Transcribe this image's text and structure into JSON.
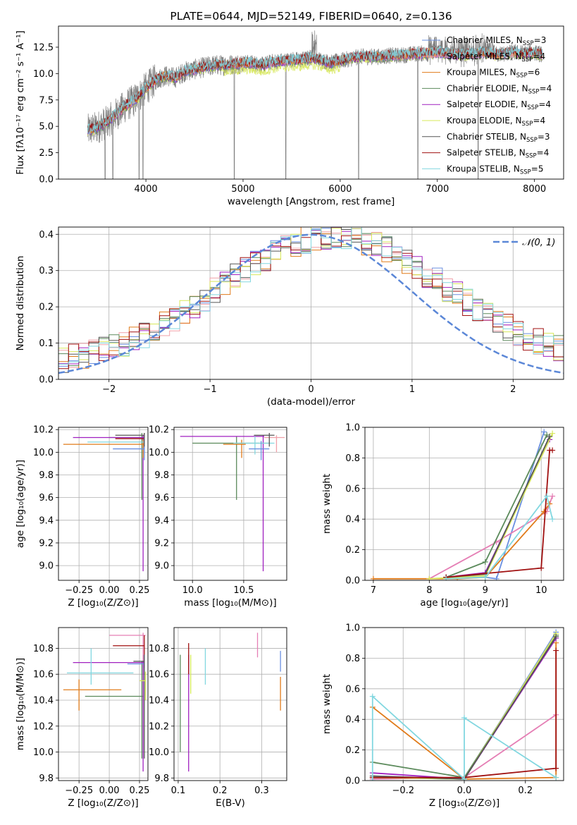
{
  "colors": {
    "chabrier_miles": "#6a8fe0",
    "salpeter_miles": "#f0a1a9",
    "kroupa_miles": "#e07b1a",
    "chabrier_elodie": "#5b8a5b",
    "salpeter_elodie": "#a020c0",
    "kroupa_elodie": "#d7e85a",
    "chabrier_stelib": "#555555",
    "salpeter_stelib": "#a01010",
    "kroupa_stelib": "#82d7e0",
    "pink": "#e57fb5",
    "data": "#808080",
    "gaussian": "#5b87d7"
  },
  "chart_data": [
    {
      "id": "spectrum",
      "type": "line",
      "title": "PLATE=0644, MJD=52149, FIBERID=0640, z=0.136",
      "xlabel": "wavelength [Angstrom, rest frame]",
      "ylabel": "Flux [fλ10⁻¹⁷ erg cm⁻² s⁻¹ A⁻¹]",
      "xlim": [
        3100,
        8300
      ],
      "ylim": [
        0,
        14.5
      ],
      "xticks": [
        "4000",
        "5000",
        "6000",
        "7000",
        "8000"
      ],
      "yticks": [
        "0.0",
        "2.5",
        "5.0",
        "7.5",
        "10.0",
        "12.5"
      ],
      "grid": false,
      "legend_position": "top-right",
      "legend": [
        {
          "label": "Chabrier MILES, N",
          "sub": "SSP",
          "tail": "=3",
          "color": "chabrier_miles"
        },
        {
          "label": "Salpeter MILES, N",
          "sub": "SSP",
          "tail": "=4",
          "color": "salpeter_miles"
        },
        {
          "label": "Kroupa MILES, N",
          "sub": "SSP",
          "tail": "=6",
          "color": "kroupa_miles"
        },
        {
          "label": "Chabrier ELODIE, N",
          "sub": "SSP",
          "tail": "=4",
          "color": "chabrier_elodie"
        },
        {
          "label": "Salpeter ELODIE, N",
          "sub": "SSP",
          "tail": "=4",
          "color": "salpeter_elodie"
        },
        {
          "label": "Kroupa ELODIE, N",
          "sub": "SSP",
          "tail": "=4",
          "color": "kroupa_elodie"
        },
        {
          "label": "Chabrier STELIB, N",
          "sub": "SSP",
          "tail": "=3",
          "color": "chabrier_stelib"
        },
        {
          "label": "Salpeter STELIB, N",
          "sub": "SSP",
          "tail": "=4",
          "color": "salpeter_stelib"
        },
        {
          "label": "Kroupa STELIB, N",
          "sub": "SSP",
          "tail": "=5",
          "color": "kroupa_stelib"
        }
      ],
      "continuum": [
        [
          3400,
          4.6
        ],
        [
          3500,
          4.9
        ],
        [
          3600,
          5.4
        ],
        [
          3700,
          6.2
        ],
        [
          3800,
          7.0
        ],
        [
          3900,
          7.6
        ],
        [
          4000,
          8.6
        ],
        [
          4100,
          9.4
        ],
        [
          4200,
          9.8
        ],
        [
          4300,
          9.6
        ],
        [
          4400,
          10.2
        ],
        [
          4500,
          10.4
        ],
        [
          4600,
          10.6
        ],
        [
          4700,
          10.8
        ],
        [
          4800,
          10.8
        ],
        [
          4900,
          10.9
        ],
        [
          5000,
          11.0
        ],
        [
          5100,
          11.0
        ],
        [
          5200,
          10.8
        ],
        [
          5300,
          11.1
        ],
        [
          5400,
          11.2
        ],
        [
          5500,
          11.3
        ],
        [
          5600,
          11.3
        ],
        [
          5700,
          11.5
        ],
        [
          5800,
          11.3
        ],
        [
          5900,
          11.0
        ],
        [
          6000,
          11.2
        ],
        [
          6100,
          11.4
        ],
        [
          6200,
          11.6
        ],
        [
          6300,
          11.6
        ],
        [
          6400,
          11.6
        ],
        [
          6500,
          11.7
        ],
        [
          6600,
          11.7
        ],
        [
          6700,
          11.8
        ],
        [
          6800,
          11.9
        ],
        [
          6900,
          11.9
        ],
        [
          7000,
          12.0
        ],
        [
          7100,
          11.9
        ],
        [
          7200,
          11.8
        ],
        [
          7300,
          11.8
        ],
        [
          7400,
          11.9
        ],
        [
          7500,
          12.0
        ],
        [
          7600,
          11.8
        ],
        [
          7700,
          11.9
        ],
        [
          7800,
          12.0
        ],
        [
          7900,
          11.9
        ],
        [
          8000,
          12.0
        ],
        [
          8080,
          11.8
        ]
      ],
      "dips": [
        [
          3580,
          0
        ],
        [
          3660,
          0
        ],
        [
          3930,
          0
        ],
        [
          3970,
          0
        ],
        [
          4910,
          0
        ],
        [
          5440,
          0
        ],
        [
          6190,
          0
        ],
        [
          6800,
          0
        ],
        [
          7420,
          0
        ]
      ]
    },
    {
      "id": "residuals",
      "type": "step",
      "xlabel": "(data-model)/error",
      "ylabel": "Normed distribution",
      "xlim": [
        -2.5,
        2.5
      ],
      "ylim": [
        0,
        0.42
      ],
      "xticks": [
        "−2",
        "−1",
        "0",
        "1",
        "2"
      ],
      "yticks": [
        "0.0",
        "0.1",
        "0.2",
        "0.3",
        "0.4"
      ],
      "grid": true,
      "legend_position": "top-right",
      "legend_label": "𝒩(0, 1)",
      "gaussian": {
        "mean": 0,
        "sigma": 1
      },
      "bin_width": 0.1,
      "series_colors": [
        "chabrier_miles",
        "salpeter_miles",
        "kroupa_miles",
        "chabrier_elodie",
        "salpeter_elodie",
        "kroupa_elodie",
        "chabrier_stelib",
        "salpeter_stelib",
        "kroupa_stelib"
      ]
    },
    {
      "id": "age_vs_Z",
      "type": "errorbar",
      "xlabel": "Z [log₁₀(Z/Z⊙)]",
      "ylabel": "age  [log₁₀(age/yr)]",
      "xlim": [
        -0.42,
        0.32
      ],
      "ylim": [
        8.87,
        10.22
      ],
      "xticks": [
        "−0.25",
        "0.00",
        "0.25"
      ],
      "yticks": [
        "9.0",
        "9.2",
        "9.4",
        "9.6",
        "9.8",
        "10.0",
        "10.2"
      ],
      "grid": true,
      "points": [
        {
          "x": 0.27,
          "y": 10.13,
          "xl": 0.0,
          "xh": 0.28,
          "yl": 9.58,
          "yh": 10.17,
          "color": "chabrier_elodie"
        },
        {
          "x": 0.28,
          "y": 10.13,
          "xl": -0.3,
          "xh": 0.29,
          "yl": 8.95,
          "yh": 10.15,
          "color": "salpeter_elodie"
        },
        {
          "x": 0.28,
          "y": 10.07,
          "xl": -0.38,
          "xh": 0.29,
          "yl": 9.95,
          "yh": 10.11,
          "color": "kroupa_miles"
        },
        {
          "x": 0.29,
          "y": 10.12,
          "xl": 0.05,
          "xh": 0.29,
          "yl": 10.03,
          "yh": 10.17,
          "color": "salpeter_stelib"
        },
        {
          "x": 0.29,
          "y": 10.09,
          "xl": -0.18,
          "xh": 0.29,
          "yl": 9.98,
          "yh": 10.15,
          "color": "kroupa_stelib"
        },
        {
          "x": 0.29,
          "y": 10.03,
          "xl": 0.03,
          "xh": 0.29,
          "yl": 9.93,
          "yh": 10.12,
          "color": "chabrier_miles"
        },
        {
          "x": 0.29,
          "y": 10.15,
          "xl": 0.05,
          "xh": 0.29,
          "yl": 10.05,
          "yh": 10.17,
          "color": "chabrier_stelib"
        }
      ]
    },
    {
      "id": "age_vs_mass",
      "type": "errorbar",
      "xlabel": "mass [log₁₀(M/M⊙)]",
      "ylabel": "",
      "xlim": [
        9.82,
        10.92
      ],
      "ylim": [
        8.87,
        10.22
      ],
      "xticks": [
        "10.0",
        "10.5"
      ],
      "yticks": [
        "9.0",
        "9.2",
        "9.4",
        "9.6",
        "9.8",
        "10.0",
        "10.2"
      ],
      "grid": true,
      "points": [
        {
          "x": 10.43,
          "y": 10.08,
          "xl": 10.0,
          "xh": 10.75,
          "yl": 9.58,
          "yh": 10.14,
          "color": "chabrier_elodie"
        },
        {
          "x": 10.69,
          "y": 10.14,
          "xl": 9.88,
          "xh": 10.7,
          "yl": 8.95,
          "yh": 10.15,
          "color": "salpeter_elodie"
        },
        {
          "x": 10.48,
          "y": 10.07,
          "xl": 10.3,
          "xh": 10.52,
          "yl": 9.95,
          "yh": 10.11,
          "color": "kroupa_miles"
        },
        {
          "x": 10.82,
          "y": 10.13,
          "xl": 10.7,
          "xh": 10.9,
          "yl": 10.0,
          "yh": 10.15,
          "color": "salpeter_miles"
        },
        {
          "x": 10.61,
          "y": 10.08,
          "xl": 10.4,
          "xh": 10.8,
          "yl": 9.98,
          "yh": 10.14,
          "color": "kroupa_stelib"
        },
        {
          "x": 10.67,
          "y": 10.03,
          "xl": 10.55,
          "xh": 10.75,
          "yl": 9.93,
          "yh": 10.1,
          "color": "chabrier_miles"
        },
        {
          "x": 10.75,
          "y": 10.15,
          "xl": 10.6,
          "xh": 10.8,
          "yl": 10.05,
          "yh": 10.17,
          "color": "chabrier_stelib"
        }
      ]
    },
    {
      "id": "massweight_vs_age",
      "type": "line",
      "xlabel": "age  [log₁₀(age/yr)]",
      "ylabel": "mass weight",
      "xlim": [
        6.85,
        10.4
      ],
      "ylim": [
        0,
        1.0
      ],
      "xticks": [
        "7",
        "8",
        "9",
        "10"
      ],
      "yticks": [
        "0.0",
        "0.2",
        "0.4",
        "0.6",
        "0.8",
        "1.0"
      ],
      "grid": true,
      "series": [
        {
          "color": "chabrier_miles",
          "x": [
            8.3,
            9.0,
            9.2,
            10.05
          ],
          "y": [
            0.02,
            0.02,
            0.01,
            0.97
          ]
        },
        {
          "color": "pink",
          "x": [
            8.0,
            9.2,
            10.1,
            10.2
          ],
          "y": [
            0.01,
            0.25,
            0.45,
            0.55
          ]
        },
        {
          "color": "kroupa_miles",
          "x": [
            7.0,
            8.5,
            9.0,
            10.05,
            10.15
          ],
          "y": [
            0.01,
            0.01,
            0.02,
            0.45,
            0.5
          ]
        },
        {
          "color": "chabrier_elodie",
          "x": [
            8.3,
            9.0,
            10.1
          ],
          "y": [
            0.02,
            0.12,
            0.95
          ]
        },
        {
          "color": "salpeter_elodie",
          "x": [
            8.3,
            9.0,
            10.15
          ],
          "y": [
            0.02,
            0.05,
            0.92
          ]
        },
        {
          "color": "kroupa_elodie",
          "x": [
            8.0,
            9.0,
            10.2
          ],
          "y": [
            0.01,
            0.03,
            0.96
          ]
        },
        {
          "color": "chabrier_stelib",
          "x": [
            8.3,
            9.0,
            10.15
          ],
          "y": [
            0.02,
            0.04,
            0.94
          ]
        },
        {
          "color": "salpeter_stelib",
          "x": [
            8.3,
            10.0,
            10.15,
            10.2
          ],
          "y": [
            0.02,
            0.08,
            0.85,
            0.85
          ]
        },
        {
          "color": "kroupa_stelib",
          "x": [
            8.3,
            9.0,
            10.1,
            10.2
          ],
          "y": [
            0.01,
            0.02,
            0.55,
            0.4
          ]
        }
      ]
    },
    {
      "id": "mass_vs_Z",
      "type": "errorbar",
      "xlabel": "Z [log₁₀(Z/Z⊙)]",
      "ylabel": "mass [log₁₀(M/M⊙)]",
      "xlim": [
        -0.42,
        0.32
      ],
      "ylim": [
        9.78,
        10.96
      ],
      "xticks": [
        "−0.25",
        "0.00",
        "0.25"
      ],
      "yticks": [
        "9.8",
        "10.0",
        "10.2",
        "10.4",
        "10.6",
        "10.8"
      ],
      "grid": true,
      "points": [
        {
          "x": 0.27,
          "y": 10.43,
          "xl": -0.2,
          "xh": 0.28,
          "yl": 9.95,
          "yh": 10.7,
          "color": "chabrier_elodie"
        },
        {
          "x": 0.28,
          "y": 10.69,
          "xl": -0.3,
          "xh": 0.29,
          "yl": 9.85,
          "yh": 10.75,
          "color": "salpeter_elodie"
        },
        {
          "x": -0.25,
          "y": 10.48,
          "xl": -0.38,
          "xh": 0.1,
          "yl": 10.32,
          "yh": 10.56,
          "color": "kroupa_miles"
        },
        {
          "x": -0.15,
          "y": 10.61,
          "xl": -0.35,
          "xh": 0.2,
          "yl": 10.52,
          "yh": 10.8,
          "color": "kroupa_stelib"
        },
        {
          "x": 0.28,
          "y": 10.9,
          "xl": 0.0,
          "xh": 0.3,
          "yl": 10.7,
          "yh": 10.92,
          "color": "pink"
        },
        {
          "x": 0.29,
          "y": 10.82,
          "xl": 0.03,
          "xh": 0.29,
          "yl": 10.65,
          "yh": 10.9,
          "color": "salpeter_stelib"
        },
        {
          "x": 0.29,
          "y": 10.68,
          "xl": 0.15,
          "xh": 0.29,
          "yl": 10.6,
          "yh": 10.75,
          "color": "chabrier_miles"
        },
        {
          "x": 0.29,
          "y": 10.7,
          "xl": 0.2,
          "xh": 0.29,
          "yl": 9.95,
          "yh": 10.75,
          "color": "chabrier_stelib"
        },
        {
          "x": 0.3,
          "y": 10.55,
          "xl": 0.25,
          "xh": 0.3,
          "yl": 10.4,
          "yh": 10.62,
          "color": "kroupa_elodie"
        }
      ]
    },
    {
      "id": "mass_vs_ebv",
      "type": "errorbar",
      "xlabel": "E(B-V)",
      "ylabel": "",
      "xlim": [
        0.09,
        0.36
      ],
      "ylim": [
        9.78,
        10.96
      ],
      "xticks": [
        "0.1",
        "0.2",
        "0.3"
      ],
      "yticks": [
        "9.8",
        "10.0",
        "10.2",
        "10.4",
        "10.6",
        "10.8"
      ],
      "grid": true,
      "points": [
        {
          "x": 0.105,
          "y": 10.55,
          "yl": 10.0,
          "yh": 10.75,
          "color": "chabrier_elodie"
        },
        {
          "x": 0.125,
          "y": 10.3,
          "yl": 9.85,
          "yh": 10.75,
          "color": "salpeter_elodie"
        },
        {
          "x": 0.125,
          "y": 10.7,
          "yl": 10.6,
          "yh": 10.84,
          "color": "salpeter_stelib"
        },
        {
          "x": 0.13,
          "y": 10.6,
          "yl": 10.45,
          "yh": 10.75,
          "color": "kroupa_elodie"
        },
        {
          "x": 0.165,
          "y": 10.66,
          "yl": 10.52,
          "yh": 10.8,
          "color": "kroupa_stelib"
        },
        {
          "x": 0.29,
          "y": 10.82,
          "yl": 10.73,
          "yh": 10.92,
          "color": "pink"
        },
        {
          "x": 0.345,
          "y": 10.45,
          "yl": 10.32,
          "yh": 10.58,
          "color": "kroupa_miles"
        },
        {
          "x": 0.345,
          "y": 10.7,
          "yl": 10.62,
          "yh": 10.78,
          "color": "chabrier_miles"
        }
      ]
    },
    {
      "id": "massweight_vs_Z",
      "type": "line",
      "xlabel": "Z [log₁₀(Z/Z⊙)]",
      "ylabel": "mass weight",
      "xlim": [
        -0.325,
        0.325
      ],
      "ylim": [
        0,
        1.0
      ],
      "xticks": [
        "−0.2",
        "0.0",
        "0.2"
      ],
      "yticks": [
        "0.0",
        "0.2",
        "0.4",
        "0.6",
        "0.8",
        "1.0"
      ],
      "grid": true,
      "series": [
        {
          "color": "chabrier_miles",
          "x": [
            -0.3,
            0.0,
            0.3
          ],
          "y": [
            0.02,
            0.01,
            0.97
          ]
        },
        {
          "color": "pink",
          "x": [
            -0.3,
            0.0,
            0.3
          ],
          "y": [
            0.01,
            0.02,
            0.43
          ]
        },
        {
          "color": "kroupa_miles",
          "x": [
            -0.3,
            0.0,
            0.3,
            0.3
          ],
          "y": [
            0.48,
            0.01,
            0.02,
            0.9
          ]
        },
        {
          "color": "chabrier_elodie",
          "x": [
            -0.3,
            0.0,
            0.3
          ],
          "y": [
            0.12,
            0.02,
            0.95
          ]
        },
        {
          "color": "salpeter_elodie",
          "x": [
            -0.3,
            0.0,
            0.3
          ],
          "y": [
            0.05,
            0.01,
            0.93
          ]
        },
        {
          "color": "kroupa_elodie",
          "x": [
            -0.3,
            0.0,
            0.3
          ],
          "y": [
            0.02,
            0.01,
            0.96
          ]
        },
        {
          "color": "chabrier_stelib",
          "x": [
            -0.3,
            0.0,
            0.3
          ],
          "y": [
            0.03,
            0.01,
            0.94
          ]
        },
        {
          "color": "salpeter_stelib",
          "x": [
            -0.3,
            0.0,
            0.3,
            0.3
          ],
          "y": [
            0.02,
            0.02,
            0.08,
            0.85
          ]
        },
        {
          "color": "kroupa_stelib",
          "x": [
            -0.3,
            -0.3,
            0.0,
            0.0,
            0.3
          ],
          "y": [
            0.0,
            0.55,
            0.01,
            0.41,
            0.02
          ]
        }
      ]
    }
  ]
}
